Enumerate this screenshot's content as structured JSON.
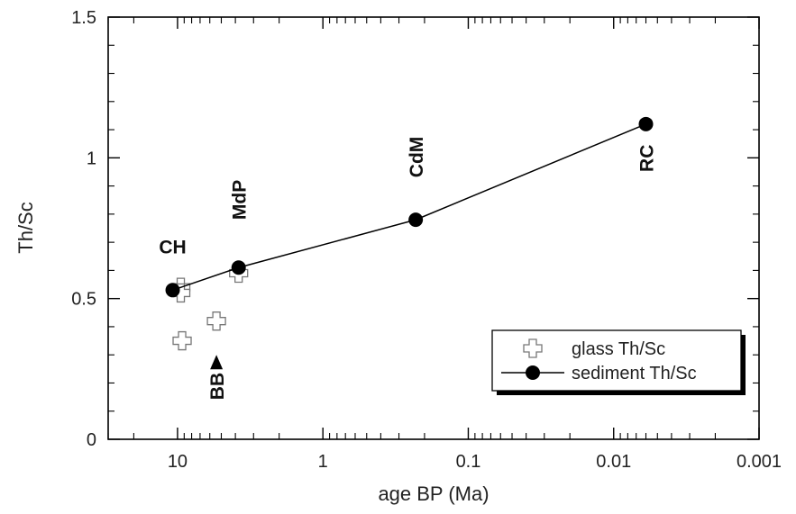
{
  "chart_data": {
    "type": "scatter",
    "title": "",
    "xlabel": "age BP (Ma)",
    "ylabel": "Th/Sc",
    "x_scale": "log",
    "x_reversed": true,
    "xlim": [
      30,
      0.001
    ],
    "ylim": [
      0,
      1.5
    ],
    "x_ticks": [
      10,
      1,
      0.1,
      0.01,
      0.001
    ],
    "x_tick_labels": [
      "10",
      "1",
      "0.1",
      "0.01",
      "0.001"
    ],
    "y_ticks": [
      0,
      0.5,
      1,
      1.5
    ],
    "y_tick_labels": [
      "0",
      "0.5",
      "1",
      "1.5"
    ],
    "grid": false,
    "legend_position": "bottom-right",
    "series": [
      {
        "name": "glass Th/Sc",
        "marker": "open-cross",
        "line": false,
        "x": [
          9.5,
          9.5,
          9.3,
          5.4,
          3.8
        ],
        "y": [
          0.54,
          0.52,
          0.35,
          0.42,
          0.59
        ]
      },
      {
        "name": "sediment Th/Sc",
        "marker": "filled-circle",
        "line": true,
        "x": [
          10.8,
          3.8,
          0.23,
          0.006
        ],
        "y": [
          0.53,
          0.61,
          0.78,
          1.12
        ]
      }
    ],
    "annotations": [
      {
        "text": "CH",
        "x": 10.8,
        "y": 0.66,
        "orientation": "horizontal"
      },
      {
        "text": "MdP",
        "x": 3.8,
        "y": 0.78,
        "orientation": "vertical"
      },
      {
        "text": "CdM",
        "x": 0.23,
        "y": 0.93,
        "orientation": "vertical"
      },
      {
        "text": "RC",
        "x": 0.006,
        "y": 0.95,
        "orientation": "vertical"
      },
      {
        "text": "BB",
        "x": 5.4,
        "y": 0.14,
        "orientation": "vertical",
        "arrow": "up"
      }
    ]
  }
}
